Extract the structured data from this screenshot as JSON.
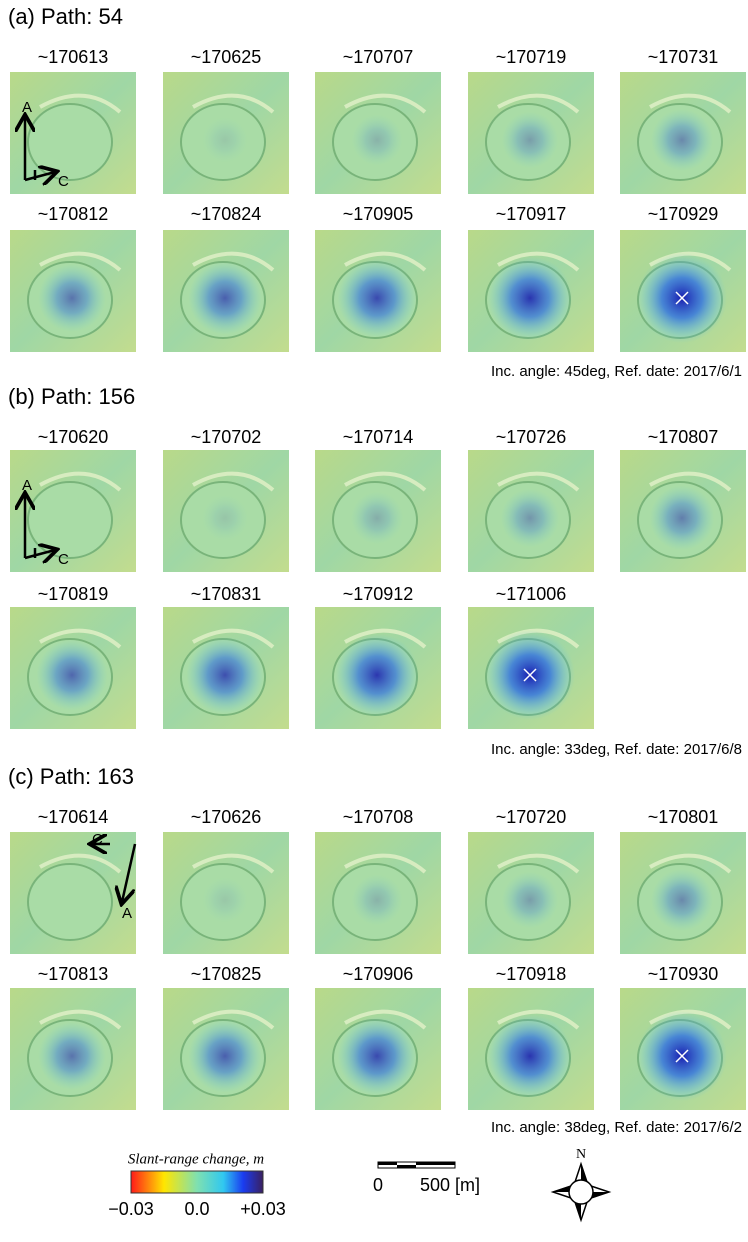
{
  "panels": [
    {
      "title": "(a) Path: 54",
      "dates": [
        "~170613",
        "~170625",
        "~170707",
        "~170719",
        "~170731",
        "~170812",
        "~170824",
        "~170905",
        "~170917",
        "~170929"
      ],
      "arrow_labels": [
        "A",
        "C"
      ],
      "caption": "Inc. angle: 45deg, Ref. date: 2017/6/1"
    },
    {
      "title": "(b) Path: 156",
      "dates": [
        "~170620",
        "~170702",
        "~170714",
        "~170726",
        "~170807",
        "~170819",
        "~170831",
        "~170912",
        "~171006"
      ],
      "arrow_labels": [
        "A",
        "C"
      ],
      "caption": "Inc. angle: 33deg, Ref. date: 2017/6/8"
    },
    {
      "title": "(c) Path: 163",
      "dates": [
        "~170614",
        "~170626",
        "~170708",
        "~170720",
        "~170801",
        "~170813",
        "~170825",
        "~170906",
        "~170918",
        "~170930"
      ],
      "arrow_labels": [
        "C",
        "A"
      ],
      "caption": "Inc. angle: 38deg, Ref. date: 2017/6/2"
    }
  ],
  "colorbar": {
    "title": "Slant-range change, m",
    "ticks": [
      "−0.03",
      "0.0",
      "+0.03"
    ]
  },
  "scale_bar": {
    "ticks": [
      "0",
      "500 [m]"
    ]
  },
  "compass": {
    "label": "N"
  }
}
